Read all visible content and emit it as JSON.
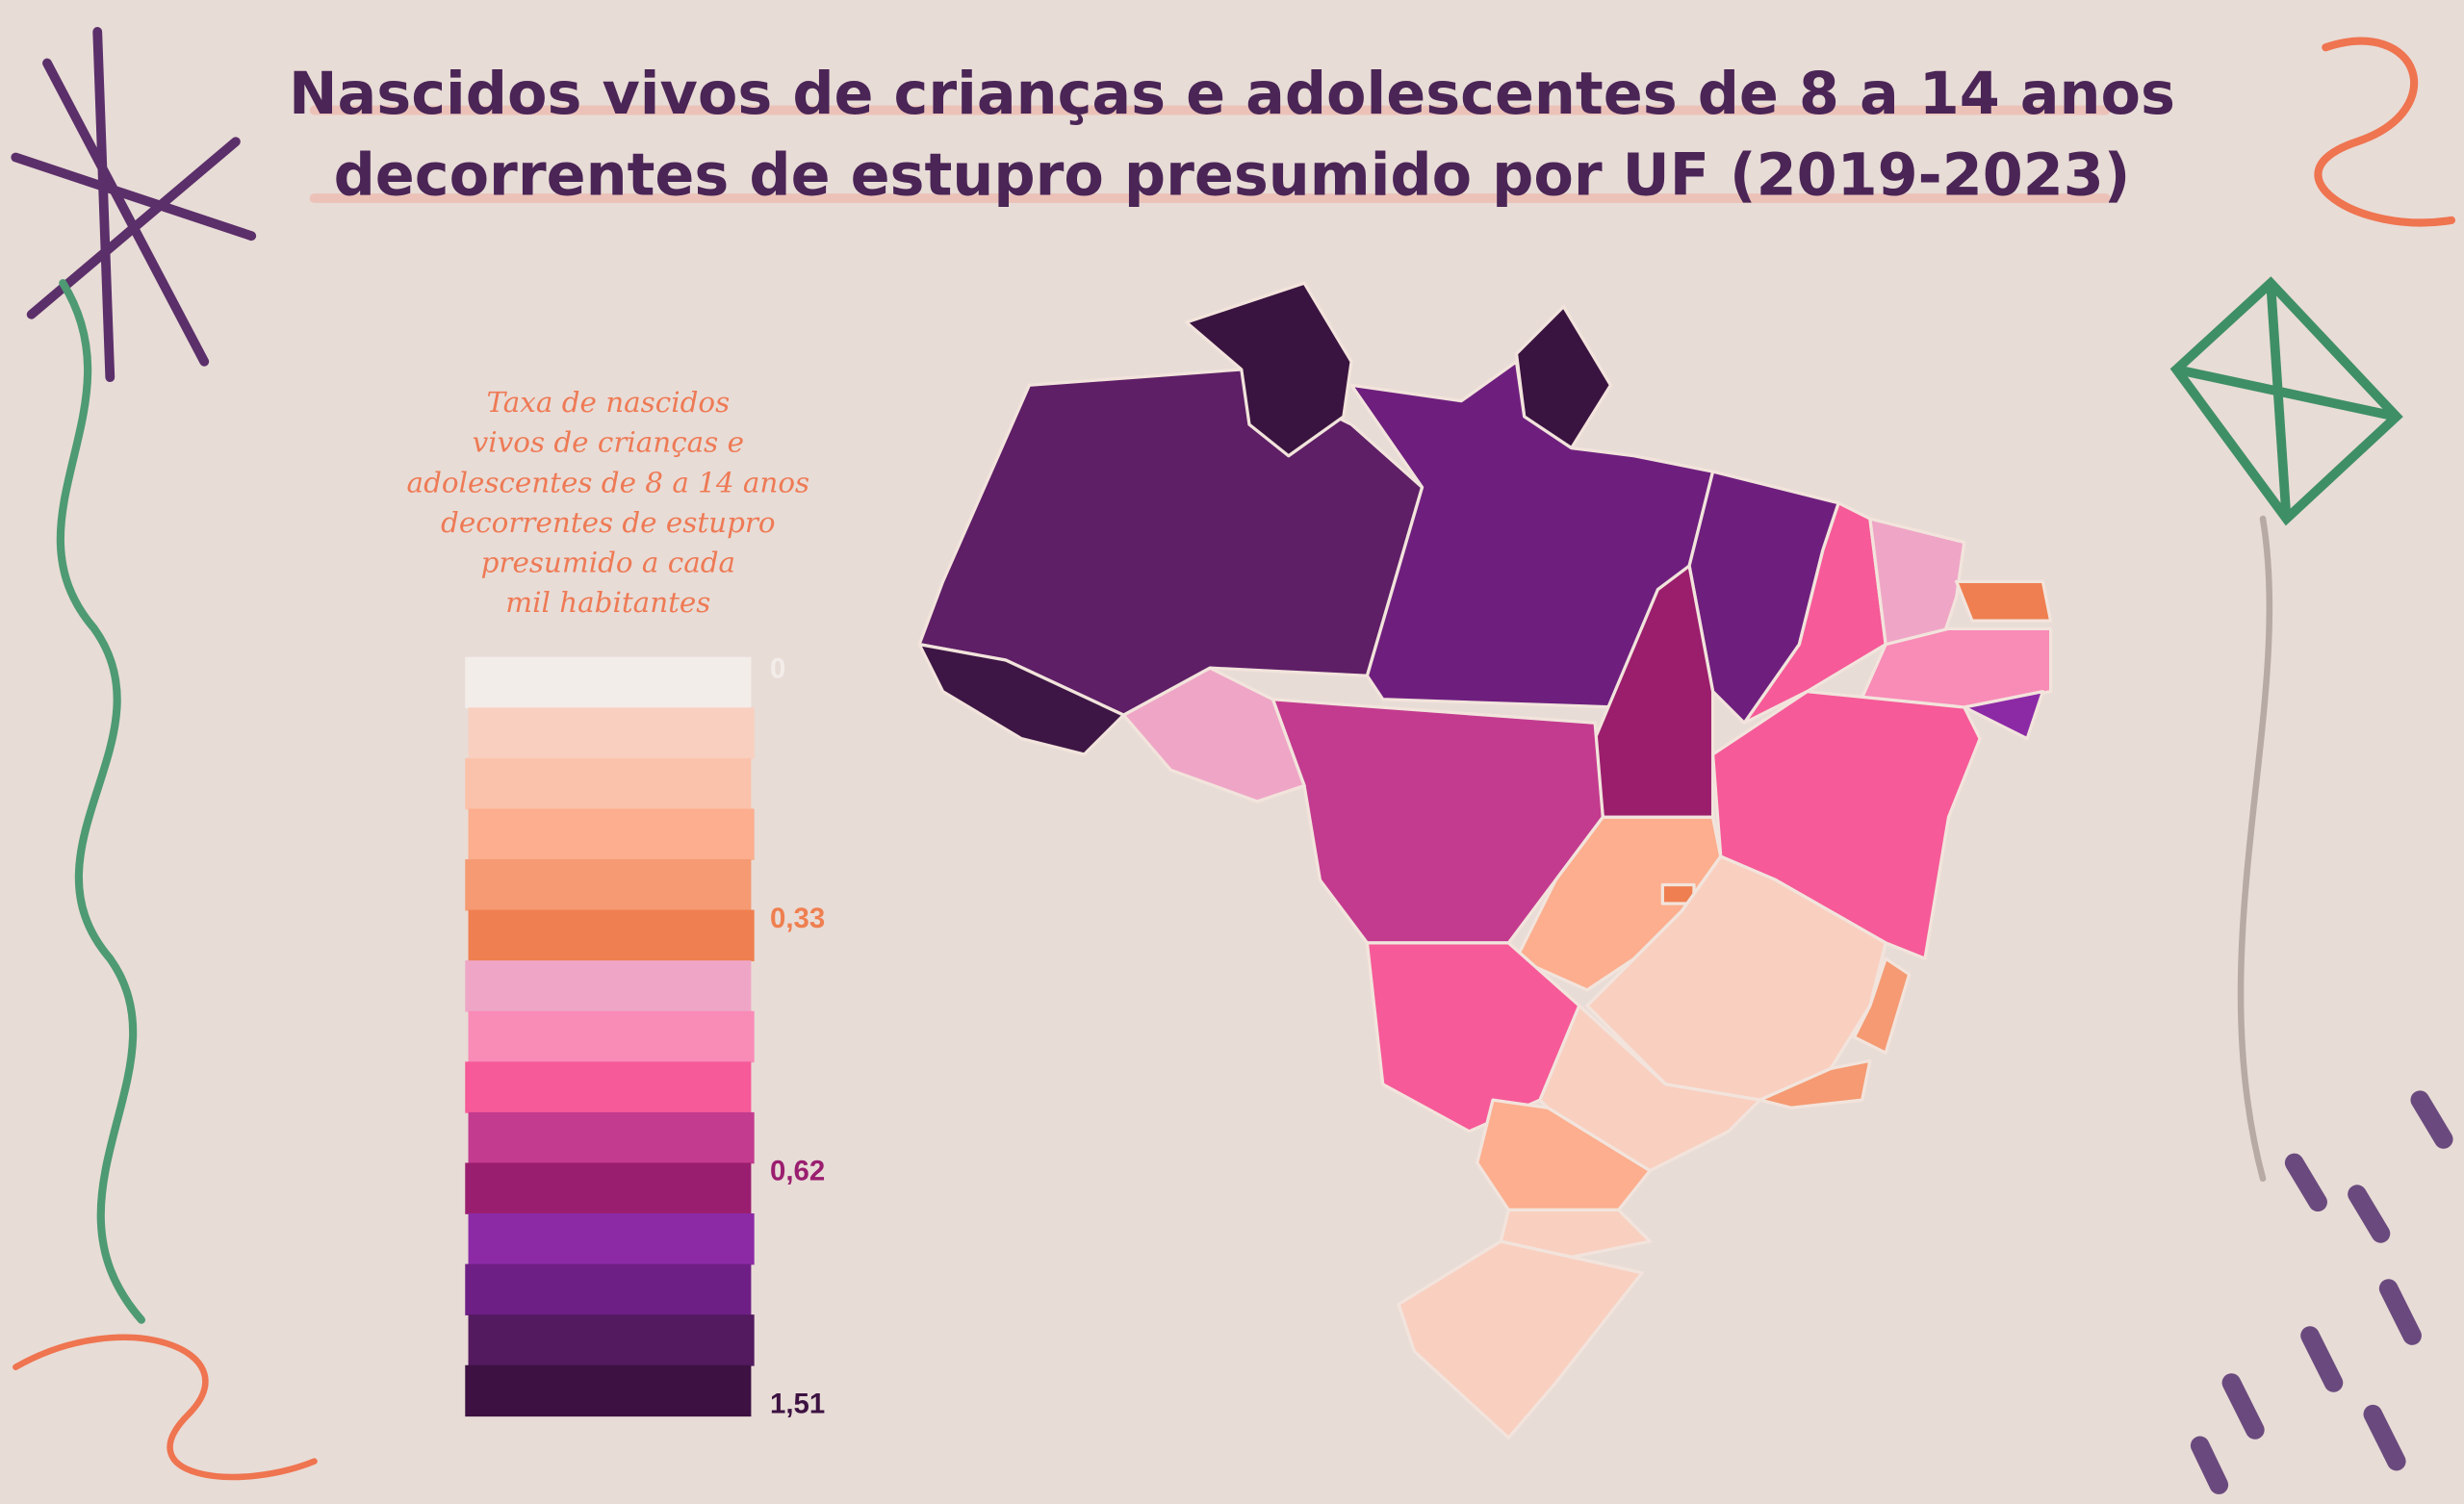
{
  "title": [
    "Nascidos vivos de crianças e adolescentes de 8 a 14 anos",
    "decorrentes de estupro presumido por UF (2019-2023)"
  ],
  "legend": {
    "title": [
      "Taxa de nascidos",
      "vivos de crianças e",
      "adolescentes de 8 a 14 anos",
      "decorrentes de estupro",
      "presumido a cada",
      "mil habitantes"
    ],
    "colors": [
      "#f3ede9",
      "#f9cfc0",
      "#fbc2ab",
      "#fcae8e",
      "#f59a72",
      "#ef7f50",
      "#efa6c6",
      "#f98bb7",
      "#f65a98",
      "#c33b8f",
      "#9a1e6f",
      "#8c2aa6",
      "#6e1f86",
      "#531a5f",
      "#3d1242"
    ],
    "ticks": [
      "0",
      "0,33",
      "0,62",
      "1,51"
    ]
  }
}
